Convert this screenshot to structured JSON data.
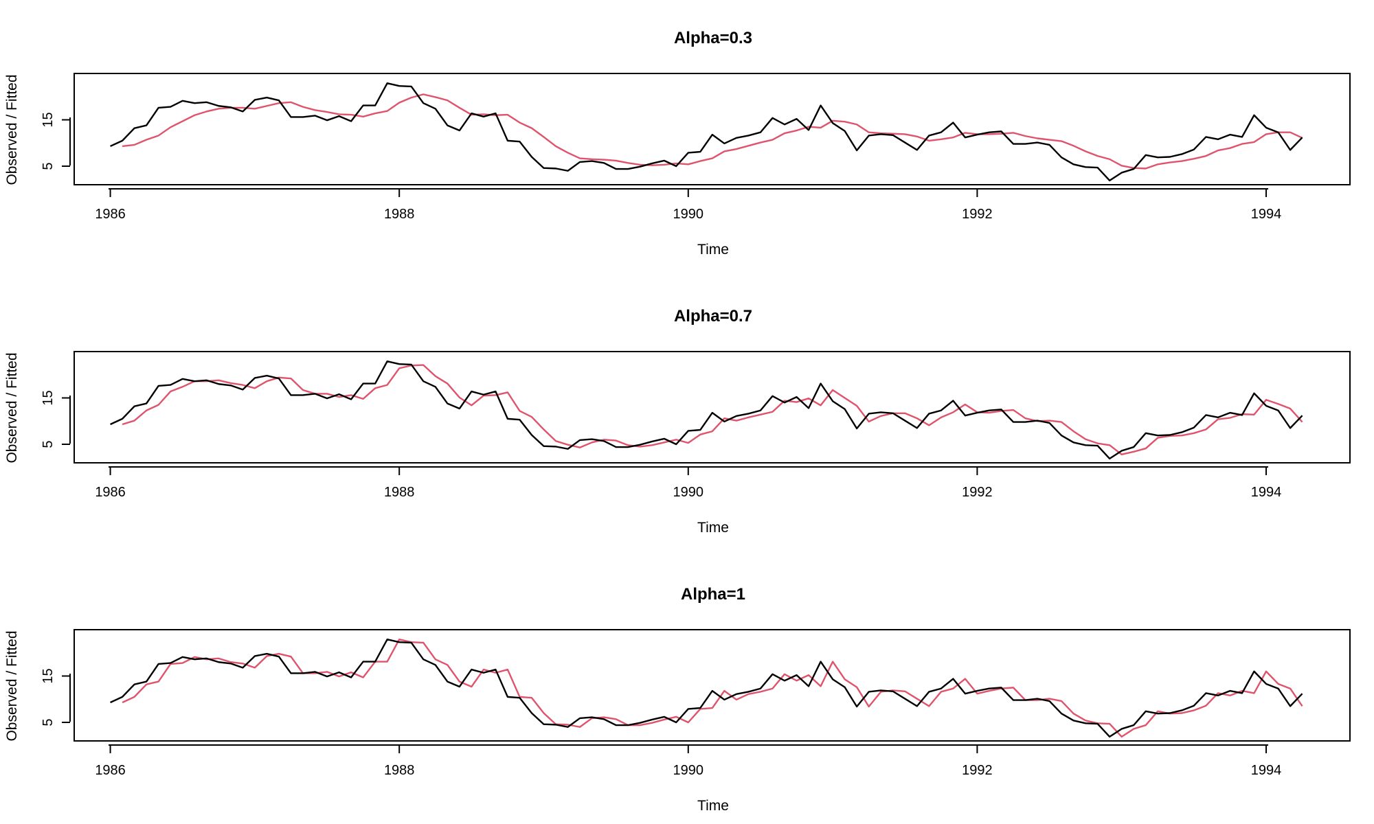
{
  "chart_data": [
    {
      "type": "line",
      "title": "Alpha=0.3",
      "xlabel": "Time",
      "ylabel": "Observed / Fitted",
      "xlim": [
        1985.75,
        1994.58
      ],
      "ylim": [
        1,
        25
      ],
      "xticks": [
        "1986",
        "1988",
        "1990",
        "1992",
        "1994"
      ],
      "yticks": [
        "5",
        "15"
      ],
      "grid": false,
      "legend": "none",
      "x_start": 1986.0,
      "x_step_months": 1,
      "series": [
        {
          "color": "#000000",
          "values": [
            9.3,
            10.5,
            13.2,
            13.8,
            17.6,
            17.8,
            19.1,
            18.6,
            18.8,
            18.0,
            17.7,
            16.8,
            19.3,
            19.8,
            19.2,
            15.6,
            15.6,
            15.9,
            14.9,
            15.8,
            14.7,
            18.1,
            18.1,
            22.9,
            22.3,
            22.2,
            18.6,
            17.4,
            13.8,
            12.7,
            16.4,
            15.7,
            16.4,
            10.5,
            10.3,
            7.0,
            4.6,
            4.5,
            4.0,
            5.9,
            6.1,
            5.7,
            4.4,
            4.4,
            4.9,
            5.6,
            6.2,
            5.0,
            7.9,
            8.1,
            11.8,
            9.9,
            11.1,
            11.6,
            12.3,
            15.4,
            14.0,
            15.2,
            12.8,
            18.1,
            14.3,
            12.6,
            8.4,
            11.6,
            11.9,
            11.7,
            10.1,
            8.5,
            11.6,
            12.3,
            14.4,
            11.2,
            11.8,
            12.3,
            12.5,
            9.8,
            9.8,
            10.1,
            9.6,
            6.9,
            5.4,
            4.8,
            4.7,
            1.9,
            3.6,
            4.4,
            7.4,
            6.9,
            7.0,
            7.6,
            8.6,
            11.3,
            10.8,
            11.8,
            11.3,
            16.0,
            13.3,
            12.3,
            8.5,
            11.2
          ]
        },
        {
          "color": "#df536b",
          "values": [
            null,
            9.3,
            9.6,
            10.7,
            11.6,
            13.4,
            14.7,
            16.0,
            16.8,
            17.4,
            17.6,
            17.6,
            17.4,
            18.0,
            18.6,
            18.8,
            17.8,
            17.1,
            16.7,
            16.2,
            16.1,
            15.7,
            16.4,
            16.9,
            18.7,
            19.8,
            20.5,
            19.9,
            19.2,
            17.6,
            16.1,
            16.2,
            16.0,
            16.1,
            14.4,
            13.2,
            11.3,
            9.3,
            7.9,
            6.7,
            6.5,
            6.4,
            6.2,
            5.7,
            5.3,
            5.2,
            5.3,
            5.6,
            5.4,
            6.1,
            6.7,
            8.2,
            8.7,
            9.4,
            10.1,
            10.7,
            12.1,
            12.7,
            13.5,
            13.3,
            14.8,
            14.6,
            14.0,
            12.3,
            12.1,
            12.0,
            11.9,
            11.4,
            10.5,
            10.8,
            11.2,
            12.2,
            11.9,
            11.9,
            12.0,
            12.2,
            11.5,
            11.0,
            10.7,
            10.4,
            9.4,
            8.2,
            7.2,
            6.5,
            5.1,
            4.6,
            4.5,
            5.4,
            5.8,
            6.1,
            6.6,
            7.2,
            8.4,
            8.9,
            9.8,
            10.2,
            11.9,
            12.3,
            12.3,
            11.1
          ]
        }
      ]
    },
    {
      "type": "line",
      "title": "Alpha=0.7",
      "xlabel": "Time",
      "ylabel": "Observed / Fitted",
      "xlim": [
        1985.75,
        1994.58
      ],
      "ylim": [
        1,
        25
      ],
      "xticks": [
        "1986",
        "1988",
        "1990",
        "1992",
        "1994"
      ],
      "yticks": [
        "5",
        "15"
      ],
      "grid": false,
      "legend": "none",
      "x_start": 1986.0,
      "x_step_months": 1,
      "series": [
        {
          "color": "#000000",
          "values": [
            9.3,
            10.5,
            13.2,
            13.8,
            17.6,
            17.8,
            19.1,
            18.6,
            18.8,
            18.0,
            17.7,
            16.8,
            19.3,
            19.8,
            19.2,
            15.6,
            15.6,
            15.9,
            14.9,
            15.8,
            14.7,
            18.1,
            18.1,
            22.9,
            22.3,
            22.2,
            18.6,
            17.4,
            13.8,
            12.7,
            16.4,
            15.7,
            16.4,
            10.5,
            10.3,
            7.0,
            4.6,
            4.5,
            4.0,
            5.9,
            6.1,
            5.7,
            4.4,
            4.4,
            4.9,
            5.6,
            6.2,
            5.0,
            7.9,
            8.1,
            11.8,
            9.9,
            11.1,
            11.6,
            12.3,
            15.4,
            14.0,
            15.2,
            12.8,
            18.1,
            14.3,
            12.6,
            8.4,
            11.6,
            11.9,
            11.7,
            10.1,
            8.5,
            11.6,
            12.3,
            14.4,
            11.2,
            11.8,
            12.3,
            12.5,
            9.8,
            9.8,
            10.1,
            9.6,
            6.9,
            5.4,
            4.8,
            4.7,
            1.9,
            3.6,
            4.4,
            7.4,
            6.9,
            7.0,
            7.6,
            8.6,
            11.3,
            10.8,
            11.8,
            11.3,
            16.0,
            13.3,
            12.3,
            8.5,
            11.2
          ]
        },
        {
          "color": "#df536b",
          "values": [
            null,
            9.3,
            10.1,
            12.3,
            13.5,
            16.4,
            17.4,
            18.6,
            18.6,
            18.8,
            18.2,
            17.8,
            17.1,
            18.6,
            19.4,
            19.2,
            16.7,
            15.9,
            15.9,
            15.2,
            15.6,
            14.8,
            17.1,
            17.8,
            21.4,
            22.0,
            22.1,
            19.7,
            18.1,
            15.1,
            13.4,
            15.5,
            15.6,
            16.2,
            12.2,
            10.9,
            8.2,
            5.7,
            4.9,
            4.3,
            5.4,
            6.0,
            5.8,
            4.8,
            4.5,
            4.8,
            5.4,
            6.0,
            5.3,
            7.1,
            7.8,
            10.6,
            10.1,
            10.8,
            11.4,
            12.0,
            14.4,
            14.1,
            14.9,
            13.4,
            16.7,
            15.0,
            13.3,
            9.9,
            11.1,
            11.7,
            11.7,
            10.6,
            9.1,
            10.8,
            11.9,
            13.6,
            11.9,
            11.8,
            12.2,
            12.4,
            10.6,
            10.0,
            10.1,
            9.8,
            7.8,
            6.1,
            5.2,
            4.8,
            2.8,
            3.4,
            4.1,
            6.4,
            6.8,
            6.9,
            7.4,
            8.2,
            10.4,
            10.7,
            11.5,
            11.4,
            14.6,
            13.7,
            12.7,
            9.8
          ]
        }
      ]
    },
    {
      "type": "line",
      "title": "Alpha=1",
      "xlabel": "Time",
      "ylabel": "Observed / Fitted",
      "xlim": [
        1985.75,
        1994.58
      ],
      "ylim": [
        1,
        25
      ],
      "xticks": [
        "1986",
        "1988",
        "1990",
        "1992",
        "1994"
      ],
      "yticks": [
        "5",
        "15"
      ],
      "grid": false,
      "legend": "none",
      "x_start": 1986.0,
      "x_step_months": 1,
      "series": [
        {
          "color": "#000000",
          "values": [
            9.3,
            10.5,
            13.2,
            13.8,
            17.6,
            17.8,
            19.1,
            18.6,
            18.8,
            18.0,
            17.7,
            16.8,
            19.3,
            19.8,
            19.2,
            15.6,
            15.6,
            15.9,
            14.9,
            15.8,
            14.7,
            18.1,
            18.1,
            22.9,
            22.3,
            22.2,
            18.6,
            17.4,
            13.8,
            12.7,
            16.4,
            15.7,
            16.4,
            10.5,
            10.3,
            7.0,
            4.6,
            4.5,
            4.0,
            5.9,
            6.1,
            5.7,
            4.4,
            4.4,
            4.9,
            5.6,
            6.2,
            5.0,
            7.9,
            8.1,
            11.8,
            9.9,
            11.1,
            11.6,
            12.3,
            15.4,
            14.0,
            15.2,
            12.8,
            18.1,
            14.3,
            12.6,
            8.4,
            11.6,
            11.9,
            11.7,
            10.1,
            8.5,
            11.6,
            12.3,
            14.4,
            11.2,
            11.8,
            12.3,
            12.5,
            9.8,
            9.8,
            10.1,
            9.6,
            6.9,
            5.4,
            4.8,
            4.7,
            1.9,
            3.6,
            4.4,
            7.4,
            6.9,
            7.0,
            7.6,
            8.6,
            11.3,
            10.8,
            11.8,
            11.3,
            16.0,
            13.3,
            12.3,
            8.5,
            11.2
          ]
        },
        {
          "color": "#df536b",
          "values": [
            null,
            9.3,
            10.5,
            13.2,
            13.8,
            17.6,
            17.8,
            19.1,
            18.6,
            18.8,
            18.0,
            17.7,
            16.8,
            19.3,
            19.8,
            19.2,
            15.6,
            15.6,
            15.9,
            14.9,
            15.8,
            14.7,
            18.1,
            18.1,
            22.9,
            22.3,
            22.2,
            18.6,
            17.4,
            13.8,
            12.7,
            16.4,
            15.7,
            16.4,
            10.5,
            10.3,
            7.0,
            4.6,
            4.5,
            4.0,
            5.9,
            6.1,
            5.7,
            4.4,
            4.4,
            4.9,
            5.6,
            6.2,
            5.0,
            7.9,
            8.1,
            11.8,
            9.9,
            11.1,
            11.6,
            12.3,
            15.4,
            14.0,
            15.2,
            12.8,
            18.1,
            14.3,
            12.6,
            8.4,
            11.6,
            11.9,
            11.7,
            10.1,
            8.5,
            11.6,
            12.3,
            14.4,
            11.2,
            11.8,
            12.3,
            12.5,
            9.8,
            9.8,
            10.1,
            9.6,
            6.9,
            5.4,
            4.8,
            4.7,
            1.9,
            3.6,
            4.4,
            7.4,
            6.9,
            7.0,
            7.6,
            8.6,
            11.3,
            10.8,
            11.8,
            11.3,
            16.0,
            13.3,
            12.3,
            8.5
          ]
        }
      ]
    }
  ]
}
